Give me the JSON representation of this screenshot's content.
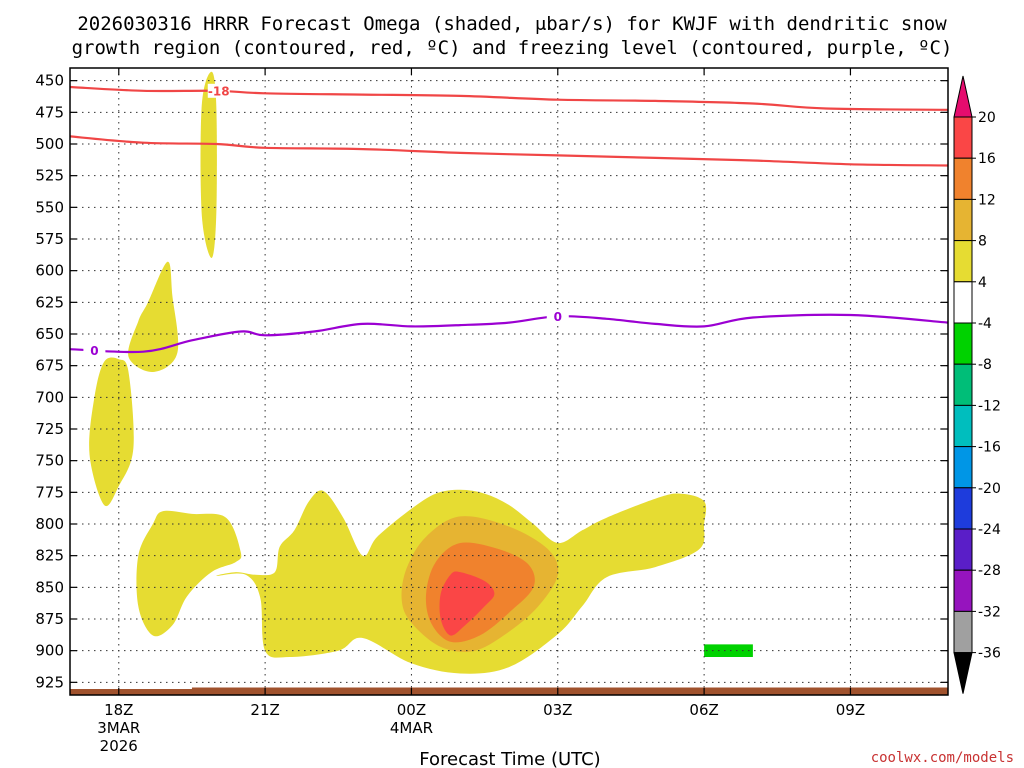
{
  "chart_data": {
    "type": "heatmap",
    "title_line1": "2026030316 HRRR Forecast Omega (shaded, μbar/s) for KWJF with dendritic snow",
    "title_line2": "growth region (contoured, red, ºC) and freezing level (contoured, purple, ºC)",
    "xlabel": "Forecast Time (UTC)",
    "x_range_hours": [
      -4,
      14
    ],
    "x_ticks": [
      {
        "label": "18Z",
        "hour": -3,
        "sub1": "3MAR",
        "sub2": "2026"
      },
      {
        "label": "21Z",
        "hour": 0,
        "sub1": "",
        "sub2": ""
      },
      {
        "label": "00Z",
        "hour": 3,
        "sub1": "4MAR",
        "sub2": ""
      },
      {
        "label": "03Z",
        "hour": 6,
        "sub1": "",
        "sub2": ""
      },
      {
        "label": "06Z",
        "hour": 9,
        "sub1": "",
        "sub2": ""
      },
      {
        "label": "09Z",
        "hour": 12,
        "sub1": "",
        "sub2": ""
      }
    ],
    "y_range_hpa": [
      440,
      935
    ],
    "y_ticks": [
      "450",
      "475",
      "500",
      "525",
      "550",
      "575",
      "600",
      "625",
      "650",
      "675",
      "700",
      "725",
      "750",
      "775",
      "800",
      "825",
      "850",
      "875",
      "900",
      "925"
    ],
    "colorbar": {
      "ticks": [
        "20",
        "16",
        "12",
        "8",
        "4",
        "-4",
        "-8",
        "-12",
        "-16",
        "-20",
        "-24",
        "-28",
        "-32",
        "-36"
      ],
      "bands": [
        "#e60c6e",
        "#fa4646",
        "#f0822d",
        "#e6b432",
        "#e6dc32",
        "#ffffff",
        "#00d200",
        "#00be78",
        "#00bebe",
        "#0096e6",
        "#1e3cdc",
        "#5a1ec8",
        "#9614be",
        "#a0a0a0",
        "#000000"
      ]
    },
    "contours": [
      {
        "name": "-18C",
        "label": "-18",
        "color": "#f04646",
        "points": [
          [
            -4,
            455
          ],
          [
            -2.5,
            458
          ],
          [
            -1,
            458
          ],
          [
            0,
            460
          ],
          [
            2,
            461
          ],
          [
            4,
            462
          ],
          [
            6,
            465
          ],
          [
            8,
            466
          ],
          [
            10,
            468
          ],
          [
            11.5,
            472
          ],
          [
            14,
            473
          ]
        ]
      },
      {
        "name": "-12C",
        "label": "",
        "color": "#f04646",
        "points": [
          [
            -4,
            494
          ],
          [
            -2.5,
            499
          ],
          [
            -1,
            500
          ],
          [
            0,
            503
          ],
          [
            2,
            504
          ],
          [
            4,
            507
          ],
          [
            6,
            509
          ],
          [
            8,
            511
          ],
          [
            10,
            513
          ],
          [
            12,
            516
          ],
          [
            14,
            517
          ]
        ]
      },
      {
        "name": "freezing level",
        "label": "0",
        "color": "#9b00d2",
        "points": [
          [
            -4,
            662
          ],
          [
            -2.5,
            664
          ],
          [
            -1.5,
            655
          ],
          [
            -0.5,
            648
          ],
          [
            0,
            651
          ],
          [
            1,
            648
          ],
          [
            2,
            642
          ],
          [
            3,
            644
          ],
          [
            4,
            643
          ],
          [
            5,
            641
          ],
          [
            6,
            636
          ],
          [
            7,
            638
          ],
          [
            8,
            642
          ],
          [
            9,
            644
          ],
          [
            10,
            637
          ],
          [
            12,
            635
          ],
          [
            14,
            641
          ]
        ]
      }
    ],
    "omega_regions": [
      {
        "value_band": "4-8",
        "color": "#e6dc32",
        "points": [
          [
            -1.1,
            443
          ],
          [
            -1.0,
            470
          ],
          [
            -1.0,
            555
          ],
          [
            -1.1,
            590
          ],
          [
            -1.3,
            555
          ],
          [
            -1.3,
            470
          ]
        ]
      },
      {
        "value_band": "4-8",
        "color": "#e6dc32",
        "points": [
          [
            -2.0,
            593
          ],
          [
            -1.9,
            620
          ],
          [
            -1.8,
            665
          ],
          [
            -2.3,
            680
          ],
          [
            -2.8,
            668
          ],
          [
            -2.6,
            640
          ],
          [
            -2.4,
            625
          ]
        ]
      },
      {
        "value_band": "4-8",
        "color": "#e6dc32",
        "points": [
          [
            -3.0,
            670
          ],
          [
            -2.8,
            680
          ],
          [
            -2.7,
            740
          ],
          [
            -3.0,
            770
          ],
          [
            -3.3,
            785
          ],
          [
            -3.6,
            745
          ],
          [
            -3.5,
            700
          ],
          [
            -3.3,
            672
          ]
        ]
      },
      {
        "value_band": "4-8",
        "color": "#e6dc32",
        "points": [
          [
            -2.1,
            790
          ],
          [
            -1.5,
            792
          ],
          [
            -0.8,
            795
          ],
          [
            -0.5,
            822
          ],
          [
            -0.6,
            830
          ],
          [
            -1.1,
            838
          ],
          [
            -1.6,
            857
          ],
          [
            -1.9,
            880
          ],
          [
            -2.3,
            888
          ],
          [
            -2.6,
            865
          ],
          [
            -2.6,
            825
          ],
          [
            -2.3,
            800
          ]
        ]
      },
      {
        "value_band": "4-8",
        "color": "#e6dc32",
        "points": [
          [
            -1.0,
            841
          ],
          [
            -0.6,
            838
          ],
          [
            -0.2,
            840
          ],
          [
            0.2,
            838
          ],
          [
            0.3,
            818
          ],
          [
            0.6,
            805
          ],
          [
            0.9,
            782
          ],
          [
            1.2,
            774
          ],
          [
            1.6,
            795
          ],
          [
            2.0,
            825
          ],
          [
            2.3,
            810
          ],
          [
            3.0,
            788
          ],
          [
            3.5,
            776
          ],
          [
            4.0,
            773
          ],
          [
            4.5,
            776
          ],
          [
            5.0,
            785
          ],
          [
            5.5,
            800
          ],
          [
            6.0,
            815
          ],
          [
            6.5,
            805
          ],
          [
            7.0,
            795
          ],
          [
            8.0,
            780
          ],
          [
            8.5,
            776
          ],
          [
            9.0,
            782
          ],
          [
            9.0,
            800
          ],
          [
            8.9,
            820
          ],
          [
            8.0,
            834
          ],
          [
            7.0,
            842
          ],
          [
            6.5,
            865
          ],
          [
            6.0,
            887
          ],
          [
            5.0,
            913
          ],
          [
            4.0,
            918
          ],
          [
            3.0,
            910
          ],
          [
            2.0,
            890
          ],
          [
            1.5,
            900
          ],
          [
            0.5,
            905
          ],
          [
            0.0,
            900
          ],
          [
            -0.1,
            858
          ],
          [
            -0.4,
            840
          ]
        ]
      },
      {
        "value_band": "8-12",
        "color": "#e6b432",
        "points": [
          [
            4.0,
            794
          ],
          [
            5.0,
            802
          ],
          [
            5.8,
            820
          ],
          [
            6.0,
            840
          ],
          [
            5.6,
            865
          ],
          [
            5.0,
            885
          ],
          [
            4.3,
            900
          ],
          [
            3.6,
            897
          ],
          [
            3.0,
            878
          ],
          [
            2.8,
            860
          ],
          [
            2.9,
            835
          ],
          [
            3.3,
            810
          ]
        ]
      },
      {
        "value_band": "12-16",
        "color": "#f0822d",
        "points": [
          [
            4.0,
            815
          ],
          [
            4.8,
            820
          ],
          [
            5.4,
            832
          ],
          [
            5.5,
            850
          ],
          [
            5.0,
            870
          ],
          [
            4.4,
            888
          ],
          [
            3.8,
            893
          ],
          [
            3.4,
            878
          ],
          [
            3.3,
            855
          ],
          [
            3.5,
            830
          ]
        ]
      },
      {
        "value_band": "16-20",
        "color": "#fa4646",
        "points": [
          [
            4.0,
            838
          ],
          [
            4.5,
            845
          ],
          [
            4.7,
            855
          ],
          [
            4.5,
            865
          ],
          [
            4.1,
            880
          ],
          [
            3.8,
            888
          ],
          [
            3.6,
            875
          ],
          [
            3.6,
            855
          ],
          [
            3.8,
            840
          ]
        ]
      },
      {
        "value_band": "-8 to -4",
        "color": "#00d200",
        "points": [
          [
            9.0,
            895
          ],
          [
            10.0,
            895
          ],
          [
            10.0,
            905
          ],
          [
            9.0,
            905
          ]
        ]
      }
    ],
    "terrain_color": "#a0522d",
    "watermark": "coolwx.com/models"
  }
}
